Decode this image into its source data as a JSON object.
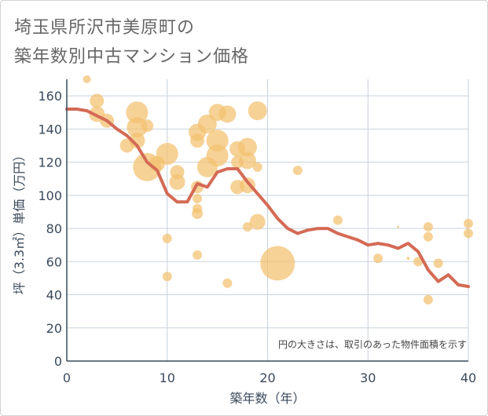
{
  "title_line1": "埼玉県所沢市美原町の",
  "title_line2": "築年数別中古マンション価格",
  "chart_data": {
    "type": "scatter",
    "title": "埼玉県所沢市美原町の築年数別中古マンション価格",
    "xlabel": "築年数（年）",
    "ylabel": "坪（3.3㎡）単価（万円）",
    "xlim": [
      0,
      40
    ],
    "ylim": [
      0,
      170
    ],
    "xticks": [
      0,
      10,
      20,
      30,
      40
    ],
    "yticks": [
      0,
      20,
      40,
      60,
      80,
      100,
      120,
      140,
      160
    ],
    "grid": true,
    "note": "円の大きさは、取引のあった物件面積を示す",
    "colors": {
      "bubble": "#f3c06f",
      "line": "#d46a55",
      "grid": "#c8d2dc",
      "axis": "#3b4a5c"
    },
    "series": [
      {
        "type": "bubble",
        "points": [
          {
            "x": 2,
            "y": 170,
            "s": 5
          },
          {
            "x": 3,
            "y": 157,
            "s": 9
          },
          {
            "x": 3,
            "y": 149,
            "s": 10
          },
          {
            "x": 4,
            "y": 145,
            "s": 9
          },
          {
            "x": 6,
            "y": 130,
            "s": 9
          },
          {
            "x": 7,
            "y": 150,
            "s": 14
          },
          {
            "x": 7,
            "y": 141,
            "s": 13
          },
          {
            "x": 7,
            "y": 133,
            "s": 10
          },
          {
            "x": 8,
            "y": 142,
            "s": 8
          },
          {
            "x": 8,
            "y": 117,
            "s": 18
          },
          {
            "x": 9,
            "y": 119,
            "s": 10
          },
          {
            "x": 10,
            "y": 125,
            "s": 14
          },
          {
            "x": 11,
            "y": 114,
            "s": 9
          },
          {
            "x": 11,
            "y": 108,
            "s": 10
          },
          {
            "x": 10,
            "y": 74,
            "s": 6
          },
          {
            "x": 10,
            "y": 51,
            "s": 6
          },
          {
            "x": 13,
            "y": 138,
            "s": 11
          },
          {
            "x": 13,
            "y": 133,
            "s": 9
          },
          {
            "x": 13,
            "y": 105,
            "s": 8
          },
          {
            "x": 13,
            "y": 98,
            "s": 6
          },
          {
            "x": 13,
            "y": 92,
            "s": 6
          },
          {
            "x": 13,
            "y": 89,
            "s": 7
          },
          {
            "x": 13,
            "y": 64,
            "s": 6
          },
          {
            "x": 14,
            "y": 143,
            "s": 12
          },
          {
            "x": 14,
            "y": 117,
            "s": 13
          },
          {
            "x": 15,
            "y": 150,
            "s": 11
          },
          {
            "x": 15,
            "y": 133,
            "s": 14
          },
          {
            "x": 15,
            "y": 124,
            "s": 14
          },
          {
            "x": 16,
            "y": 149,
            "s": 11
          },
          {
            "x": 16,
            "y": 47,
            "s": 6
          },
          {
            "x": 17,
            "y": 128,
            "s": 10
          },
          {
            "x": 17,
            "y": 120,
            "s": 8
          },
          {
            "x": 17,
            "y": 105,
            "s": 9
          },
          {
            "x": 18,
            "y": 129,
            "s": 12
          },
          {
            "x": 18,
            "y": 121,
            "s": 11
          },
          {
            "x": 18,
            "y": 106,
            "s": 10
          },
          {
            "x": 18,
            "y": 81,
            "s": 6
          },
          {
            "x": 19,
            "y": 151,
            "s": 12
          },
          {
            "x": 19,
            "y": 117,
            "s": 6
          },
          {
            "x": 19,
            "y": 84,
            "s": 10
          },
          {
            "x": 21,
            "y": 59,
            "s": 22
          },
          {
            "x": 23,
            "y": 115,
            "s": 6
          },
          {
            "x": 27,
            "y": 85,
            "s": 6
          },
          {
            "x": 31,
            "y": 62,
            "s": 6
          },
          {
            "x": 33,
            "y": 81,
            "s": 1.5
          },
          {
            "x": 34,
            "y": 62,
            "s": 2
          },
          {
            "x": 35,
            "y": 60,
            "s": 6
          },
          {
            "x": 36,
            "y": 81,
            "s": 6
          },
          {
            "x": 36,
            "y": 75,
            "s": 6
          },
          {
            "x": 36,
            "y": 37,
            "s": 6
          },
          {
            "x": 37,
            "y": 59,
            "s": 6
          },
          {
            "x": 40,
            "y": 83,
            "s": 6
          },
          {
            "x": 40,
            "y": 77,
            "s": 6
          }
        ]
      },
      {
        "type": "line",
        "x": [
          0,
          1,
          2,
          3,
          4,
          5,
          6,
          7,
          8,
          9,
          10,
          11,
          12,
          13,
          14,
          15,
          16,
          17,
          18,
          19,
          20,
          21,
          22,
          23,
          24,
          25,
          26,
          27,
          28,
          29,
          30,
          31,
          32,
          33,
          34,
          35,
          36,
          37,
          38,
          39,
          40
        ],
        "y": [
          152,
          152,
          151,
          148,
          145,
          140,
          136,
          130,
          120,
          115,
          101,
          96,
          96,
          107,
          105,
          114,
          116,
          116,
          108,
          101,
          94,
          86,
          80,
          77,
          79,
          80,
          80,
          77,
          75,
          73,
          70,
          71,
          70,
          68,
          71,
          66,
          55,
          48,
          52,
          46,
          45
        ]
      }
    ]
  }
}
